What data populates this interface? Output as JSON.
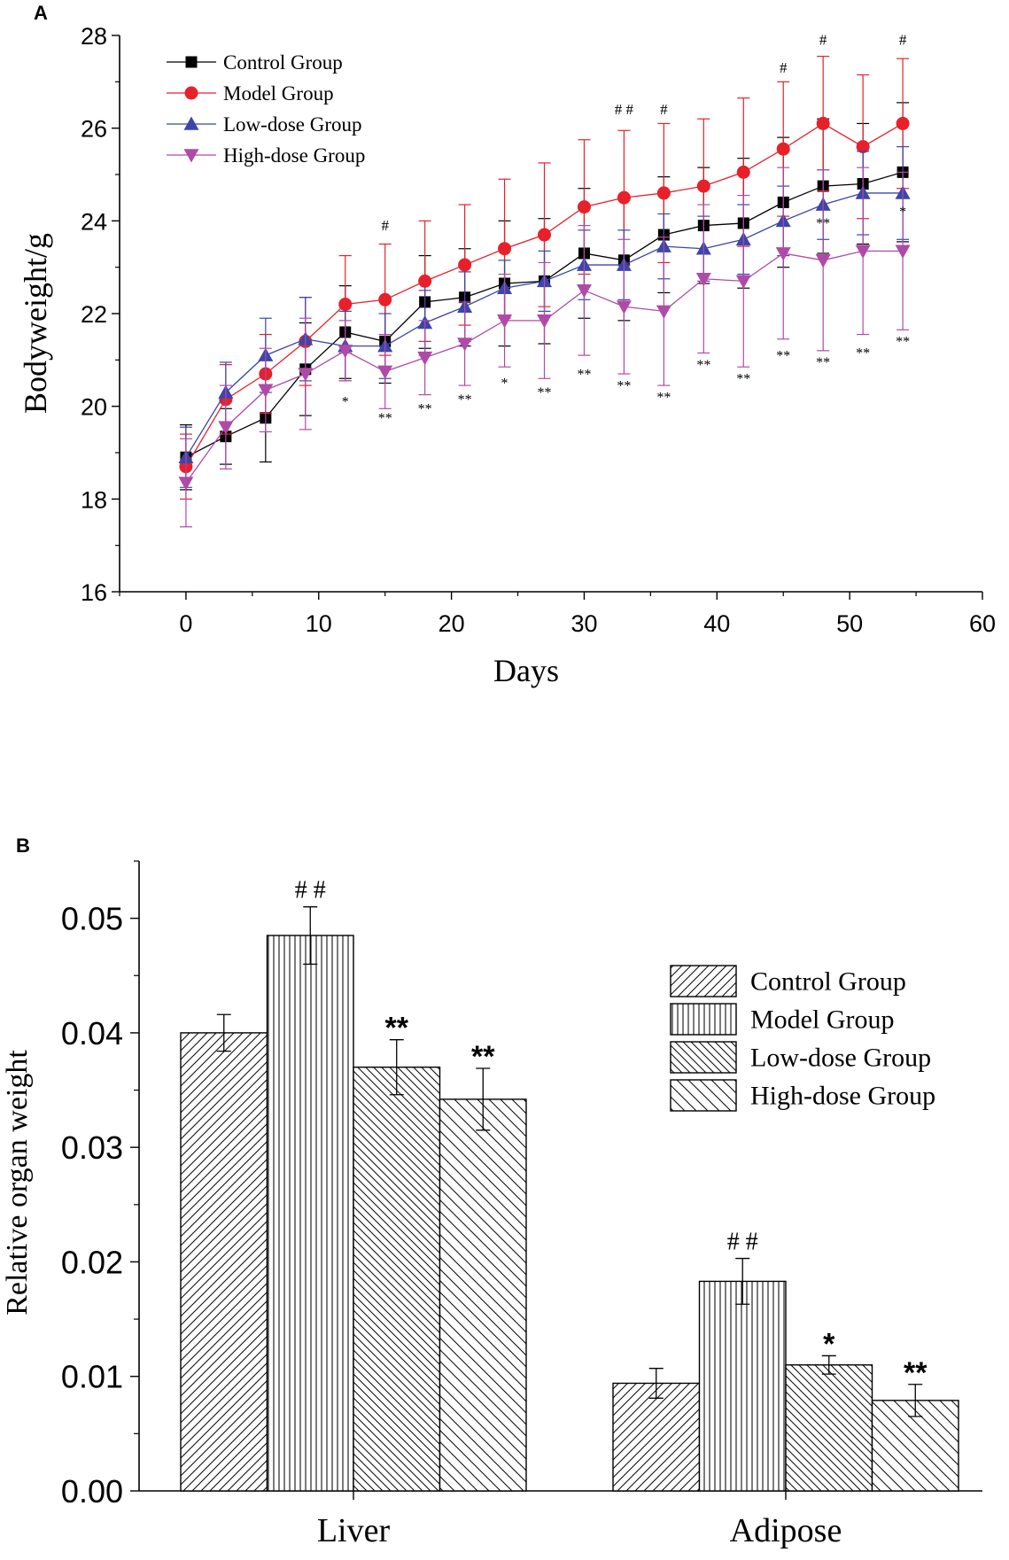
{
  "chart_data": [
    {
      "panel": "A",
      "type": "line",
      "title": "",
      "xlabel": "Days",
      "ylabel": "Bodyweight/g",
      "xlim": [
        -5,
        60
      ],
      "ylim": [
        16,
        28
      ],
      "xticks": [
        0,
        10,
        20,
        30,
        40,
        50,
        60
      ],
      "yticks": [
        16,
        18,
        20,
        22,
        24,
        26,
        28
      ],
      "legend": "top-left",
      "x": [
        0,
        3,
        6,
        9,
        12,
        15,
        18,
        21,
        24,
        27,
        30,
        33,
        36,
        39,
        42,
        45,
        48,
        51,
        54
      ],
      "series": [
        {
          "name": "Control Group",
          "color": "#000000",
          "marker": "square",
          "values": [
            18.9,
            19.35,
            19.75,
            20.8,
            21.6,
            21.4,
            22.25,
            22.35,
            22.65,
            22.7,
            23.3,
            23.15,
            23.7,
            23.9,
            23.95,
            24.4,
            24.75,
            24.8,
            25.05
          ],
          "errors": [
            0.7,
            0.6,
            0.95,
            1.0,
            1.0,
            0.9,
            1.0,
            1.05,
            1.35,
            1.35,
            1.4,
            1.3,
            1.25,
            1.25,
            1.4,
            1.4,
            1.45,
            1.3,
            1.5
          ]
        },
        {
          "name": "Model Group",
          "color": "#e8202a",
          "marker": "circle",
          "values": [
            18.7,
            20.15,
            20.7,
            21.4,
            22.2,
            22.3,
            22.7,
            23.05,
            23.4,
            23.7,
            24.3,
            24.5,
            24.6,
            24.75,
            25.05,
            25.55,
            26.1,
            25.6,
            26.1
          ],
          "errors": [
            0.7,
            0.75,
            0.85,
            0.95,
            1.05,
            1.2,
            1.3,
            1.3,
            1.5,
            1.55,
            1.45,
            1.45,
            1.5,
            1.45,
            1.6,
            1.45,
            1.45,
            1.55,
            1.4
          ]
        },
        {
          "name": "Low-dose Group",
          "color": "#3b46a8",
          "marker": "triangle-up",
          "values": [
            18.9,
            20.3,
            21.1,
            21.45,
            21.3,
            21.3,
            21.8,
            22.15,
            22.55,
            22.7,
            23.05,
            23.05,
            23.45,
            23.4,
            23.6,
            24.0,
            24.35,
            24.6,
            24.6
          ],
          "errors": [
            0.65,
            0.65,
            0.8,
            0.9,
            0.75,
            0.7,
            0.7,
            0.75,
            0.6,
            0.65,
            0.75,
            0.75,
            0.7,
            0.7,
            0.75,
            0.75,
            0.75,
            0.9,
            1.0
          ]
        },
        {
          "name": "High-dose Group",
          "color": "#b04aa8",
          "marker": "triangle-down",
          "values": [
            18.35,
            19.55,
            20.35,
            20.7,
            21.2,
            20.75,
            21.05,
            21.35,
            21.85,
            21.85,
            22.5,
            22.15,
            22.05,
            22.75,
            22.7,
            23.3,
            23.15,
            23.35,
            23.35
          ],
          "errors": [
            0.95,
            0.9,
            0.9,
            1.2,
            0.65,
            0.8,
            0.8,
            0.9,
            1.0,
            1.25,
            1.4,
            1.45,
            1.6,
            1.6,
            1.85,
            1.85,
            1.95,
            1.8,
            1.7
          ]
        }
      ],
      "annotations": [
        {
          "text": "#",
          "x": 15,
          "y": 23.8
        },
        {
          "text": "# #",
          "x": 33,
          "y": 26.3
        },
        {
          "text": "#",
          "x": 36,
          "y": 26.3
        },
        {
          "text": "#",
          "x": 45,
          "y": 27.2
        },
        {
          "text": "#",
          "x": 48,
          "y": 27.8
        },
        {
          "text": "#",
          "x": 54,
          "y": 27.8
        },
        {
          "text": "**",
          "x": 48,
          "y": 23.85
        },
        {
          "text": "*",
          "x": 54,
          "y": 24.1
        },
        {
          "text": "*",
          "x": 12,
          "y": 20.0
        },
        {
          "text": "**",
          "x": 15,
          "y": 19.65
        },
        {
          "text": "**",
          "x": 18,
          "y": 19.85
        },
        {
          "text": "**",
          "x": 21,
          "y": 20.05
        },
        {
          "text": "*",
          "x": 24,
          "y": 20.4
        },
        {
          "text": "**",
          "x": 27,
          "y": 20.2
        },
        {
          "text": "**",
          "x": 30,
          "y": 20.6
        },
        {
          "text": "**",
          "x": 33,
          "y": 20.35
        },
        {
          "text": "**",
          "x": 36,
          "y": 20.1
        },
        {
          "text": "**",
          "x": 39,
          "y": 20.8
        },
        {
          "text": "**",
          "x": 42,
          "y": 20.5
        },
        {
          "text": "**",
          "x": 45,
          "y": 21.0
        },
        {
          "text": "**",
          "x": 48,
          "y": 20.85
        },
        {
          "text": "**",
          "x": 51,
          "y": 21.05
        },
        {
          "text": "**",
          "x": 54,
          "y": 21.3
        }
      ]
    },
    {
      "panel": "B",
      "type": "bar",
      "title": "",
      "xlabel": "",
      "ylabel": "Relative organ weight",
      "ylim": [
        0,
        0.055
      ],
      "yticks": [
        "0.00",
        "0.01",
        "0.02",
        "0.03",
        "0.04",
        "0.05"
      ],
      "categories": [
        "Liver",
        "Adipose"
      ],
      "legend": "right",
      "series": [
        {
          "name": "Control Group",
          "pattern": "diag-right",
          "values": [
            0.04,
            0.0094
          ],
          "errors": [
            0.0016,
            0.0013
          ]
        },
        {
          "name": "Model Group",
          "pattern": "vertical",
          "values": [
            0.0485,
            0.0183
          ],
          "errors": [
            0.0025,
            0.002
          ]
        },
        {
          "name": "Low-dose Group",
          "pattern": "diag-left-dense",
          "values": [
            0.037,
            0.011
          ],
          "errors": [
            0.0024,
            0.0008
          ]
        },
        {
          "name": "High-dose Group",
          "pattern": "diag-left-sparse",
          "values": [
            0.0342,
            0.0079
          ],
          "errors": [
            0.0027,
            0.0014
          ]
        }
      ],
      "annotations": [
        {
          "text": "# #",
          "category": 0,
          "series": 1
        },
        {
          "text": "**",
          "category": 0,
          "series": 2
        },
        {
          "text": "**",
          "category": 0,
          "series": 3
        },
        {
          "text": "# #",
          "category": 1,
          "series": 1
        },
        {
          "text": "*",
          "category": 1,
          "series": 2
        },
        {
          "text": "**",
          "category": 1,
          "series": 3
        }
      ]
    }
  ]
}
